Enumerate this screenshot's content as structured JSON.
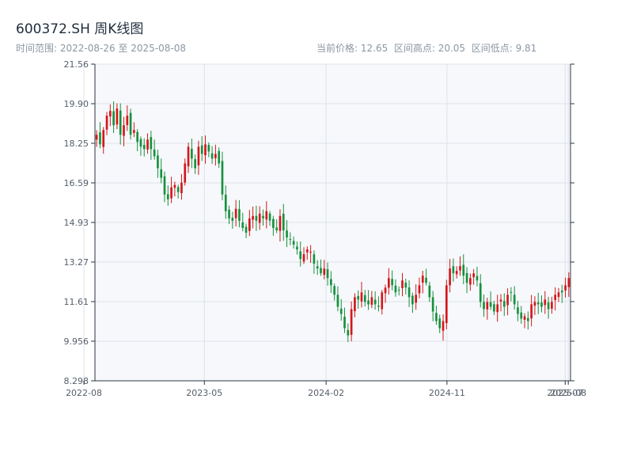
{
  "header": {
    "title": "600372.SH 周K线图",
    "range_label": "时间范围: 2022-08-26 至 2025-08-08",
    "stats": {
      "current_price_label": "当前价格: 12.65",
      "high_label": "区间高点: 20.05",
      "low_label": "区间低点: 9.81"
    }
  },
  "colors": {
    "up": "#d4161c",
    "down": "#17903e",
    "plot_bg": "#f6f8fb",
    "grid": "#dde2e8",
    "axis": "#2b3440"
  },
  "chart_data": {
    "type": "candlestick",
    "title": "600372.SH 周K线图",
    "y_ticks": [
      "8.298",
      "9.956",
      "11.61",
      "13.27",
      "14.93",
      "16.59",
      "18.25",
      "19.90",
      "21.56"
    ],
    "ylim": [
      8.298,
      21.56
    ],
    "x_ticks": [
      "2022-08",
      "2023-05",
      "2024-02",
      "2024-11",
      "2025-07",
      "2025-08"
    ],
    "x_tick_dates": [
      "2022-08-01",
      "2023-05-01",
      "2024-02-01",
      "2024-11-01",
      "2025-07-27",
      "2025-08-03"
    ],
    "date_range": [
      "2022-08-26",
      "2025-08-08"
    ],
    "grid": true,
    "closes": [
      18.6,
      18.2,
      18.8,
      19.4,
      19.6,
      19.0,
      19.7,
      18.6,
      19.0,
      19.4,
      18.6,
      18.8,
      18.3,
      18.1,
      18.0,
      18.4,
      18.0,
      17.7,
      17.2,
      16.8,
      16.1,
      15.9,
      16.4,
      16.5,
      16.2,
      16.6,
      17.4,
      18.1,
      17.6,
      17.2,
      18.1,
      17.8,
      18.2,
      17.9,
      17.6,
      17.8,
      17.4,
      16.1,
      15.4,
      15.1,
      15.0,
      15.5,
      15.0,
      14.7,
      14.5,
      15.1,
      15.2,
      15.0,
      15.3,
      15.1,
      15.4,
      15.0,
      14.7,
      14.6,
      15.2,
      14.6,
      14.3,
      14.2,
      14.0,
      13.8,
      13.4,
      13.6,
      13.8,
      13.7,
      13.2,
      13.0,
      12.8,
      13.0,
      12.6,
      12.3,
      11.9,
      11.4,
      11.1,
      10.5,
      10.2,
      11.3,
      11.8,
      11.7,
      12.0,
      11.6,
      11.5,
      11.8,
      11.5,
      11.4,
      12.0,
      12.2,
      12.6,
      12.3,
      12.0,
      12.1,
      12.5,
      12.2,
      11.8,
      11.5,
      11.9,
      12.3,
      12.7,
      12.4,
      11.8,
      11.2,
      10.8,
      10.5,
      10.8,
      12.3,
      13.0,
      12.8,
      12.9,
      13.1,
      12.7,
      12.4,
      12.6,
      12.8,
      12.5,
      11.6,
      11.3,
      11.6,
      11.4,
      11.2,
      11.5,
      11.7,
      11.4,
      11.9,
      12.0,
      11.5,
      11.1,
      10.9,
      11.0,
      10.8,
      11.5,
      11.6,
      11.5,
      11.4,
      11.7,
      11.3,
      11.6,
      11.9,
      12.0,
      12.0,
      12.3,
      12.6
    ]
  }
}
